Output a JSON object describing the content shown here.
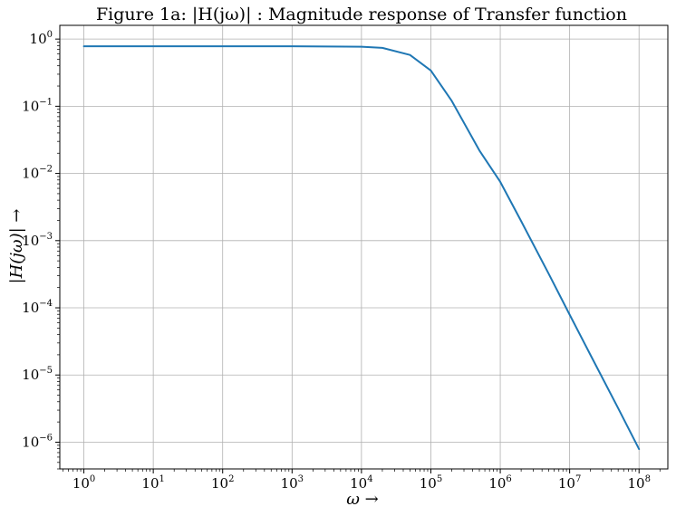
{
  "chart_data": {
    "type": "line",
    "title": "Figure 1a: |H(jω)| : Magnitude response of Transfer function",
    "xlabel": "ω →",
    "ylabel": "|H(jω)| →",
    "xscale": "log",
    "yscale": "log",
    "xlim": [
      0.45,
      260000000.0
    ],
    "ylim": [
      4e-07,
      1.6
    ],
    "grid": true,
    "legend": "none",
    "x_ticks": [
      {
        "base": "10",
        "exp": "0",
        "value": 1
      },
      {
        "base": "10",
        "exp": "1",
        "value": 10
      },
      {
        "base": "10",
        "exp": "2",
        "value": 100
      },
      {
        "base": "10",
        "exp": "3",
        "value": 1000
      },
      {
        "base": "10",
        "exp": "4",
        "value": 10000
      },
      {
        "base": "10",
        "exp": "5",
        "value": 100000
      },
      {
        "base": "10",
        "exp": "6",
        "value": 1000000
      },
      {
        "base": "10",
        "exp": "7",
        "value": 10000000
      },
      {
        "base": "10",
        "exp": "8",
        "value": 100000000
      }
    ],
    "y_ticks": [
      {
        "base": "10",
        "exp": "0",
        "value": 1
      },
      {
        "base": "10",
        "exp": "−1",
        "value": 0.1
      },
      {
        "base": "10",
        "exp": "−2",
        "value": 0.01
      },
      {
        "base": "10",
        "exp": "−3",
        "value": 0.001
      },
      {
        "base": "10",
        "exp": "−4",
        "value": 0.0001
      },
      {
        "base": "10",
        "exp": "−5",
        "value": 1e-05
      },
      {
        "base": "10",
        "exp": "−6",
        "value": 1e-06
      }
    ],
    "series": [
      {
        "color": "#1f77b4",
        "x": [
          1,
          10,
          100,
          1000,
          10000,
          20000,
          50000,
          100000,
          200000,
          500000,
          1000000,
          2000000,
          5000000,
          10000000,
          20000000,
          50000000,
          100000000
        ],
        "y": [
          0.78,
          0.78,
          0.78,
          0.78,
          0.77,
          0.74,
          0.58,
          0.34,
          0.12,
          0.022,
          0.0075,
          0.00195,
          0.00032,
          7.9e-05,
          1.98e-05,
          3.2e-06,
          7.9e-07
        ]
      }
    ]
  },
  "colors": {
    "grid": "#b0b0b0",
    "axes": "#000000",
    "line": "#1f77b4"
  }
}
